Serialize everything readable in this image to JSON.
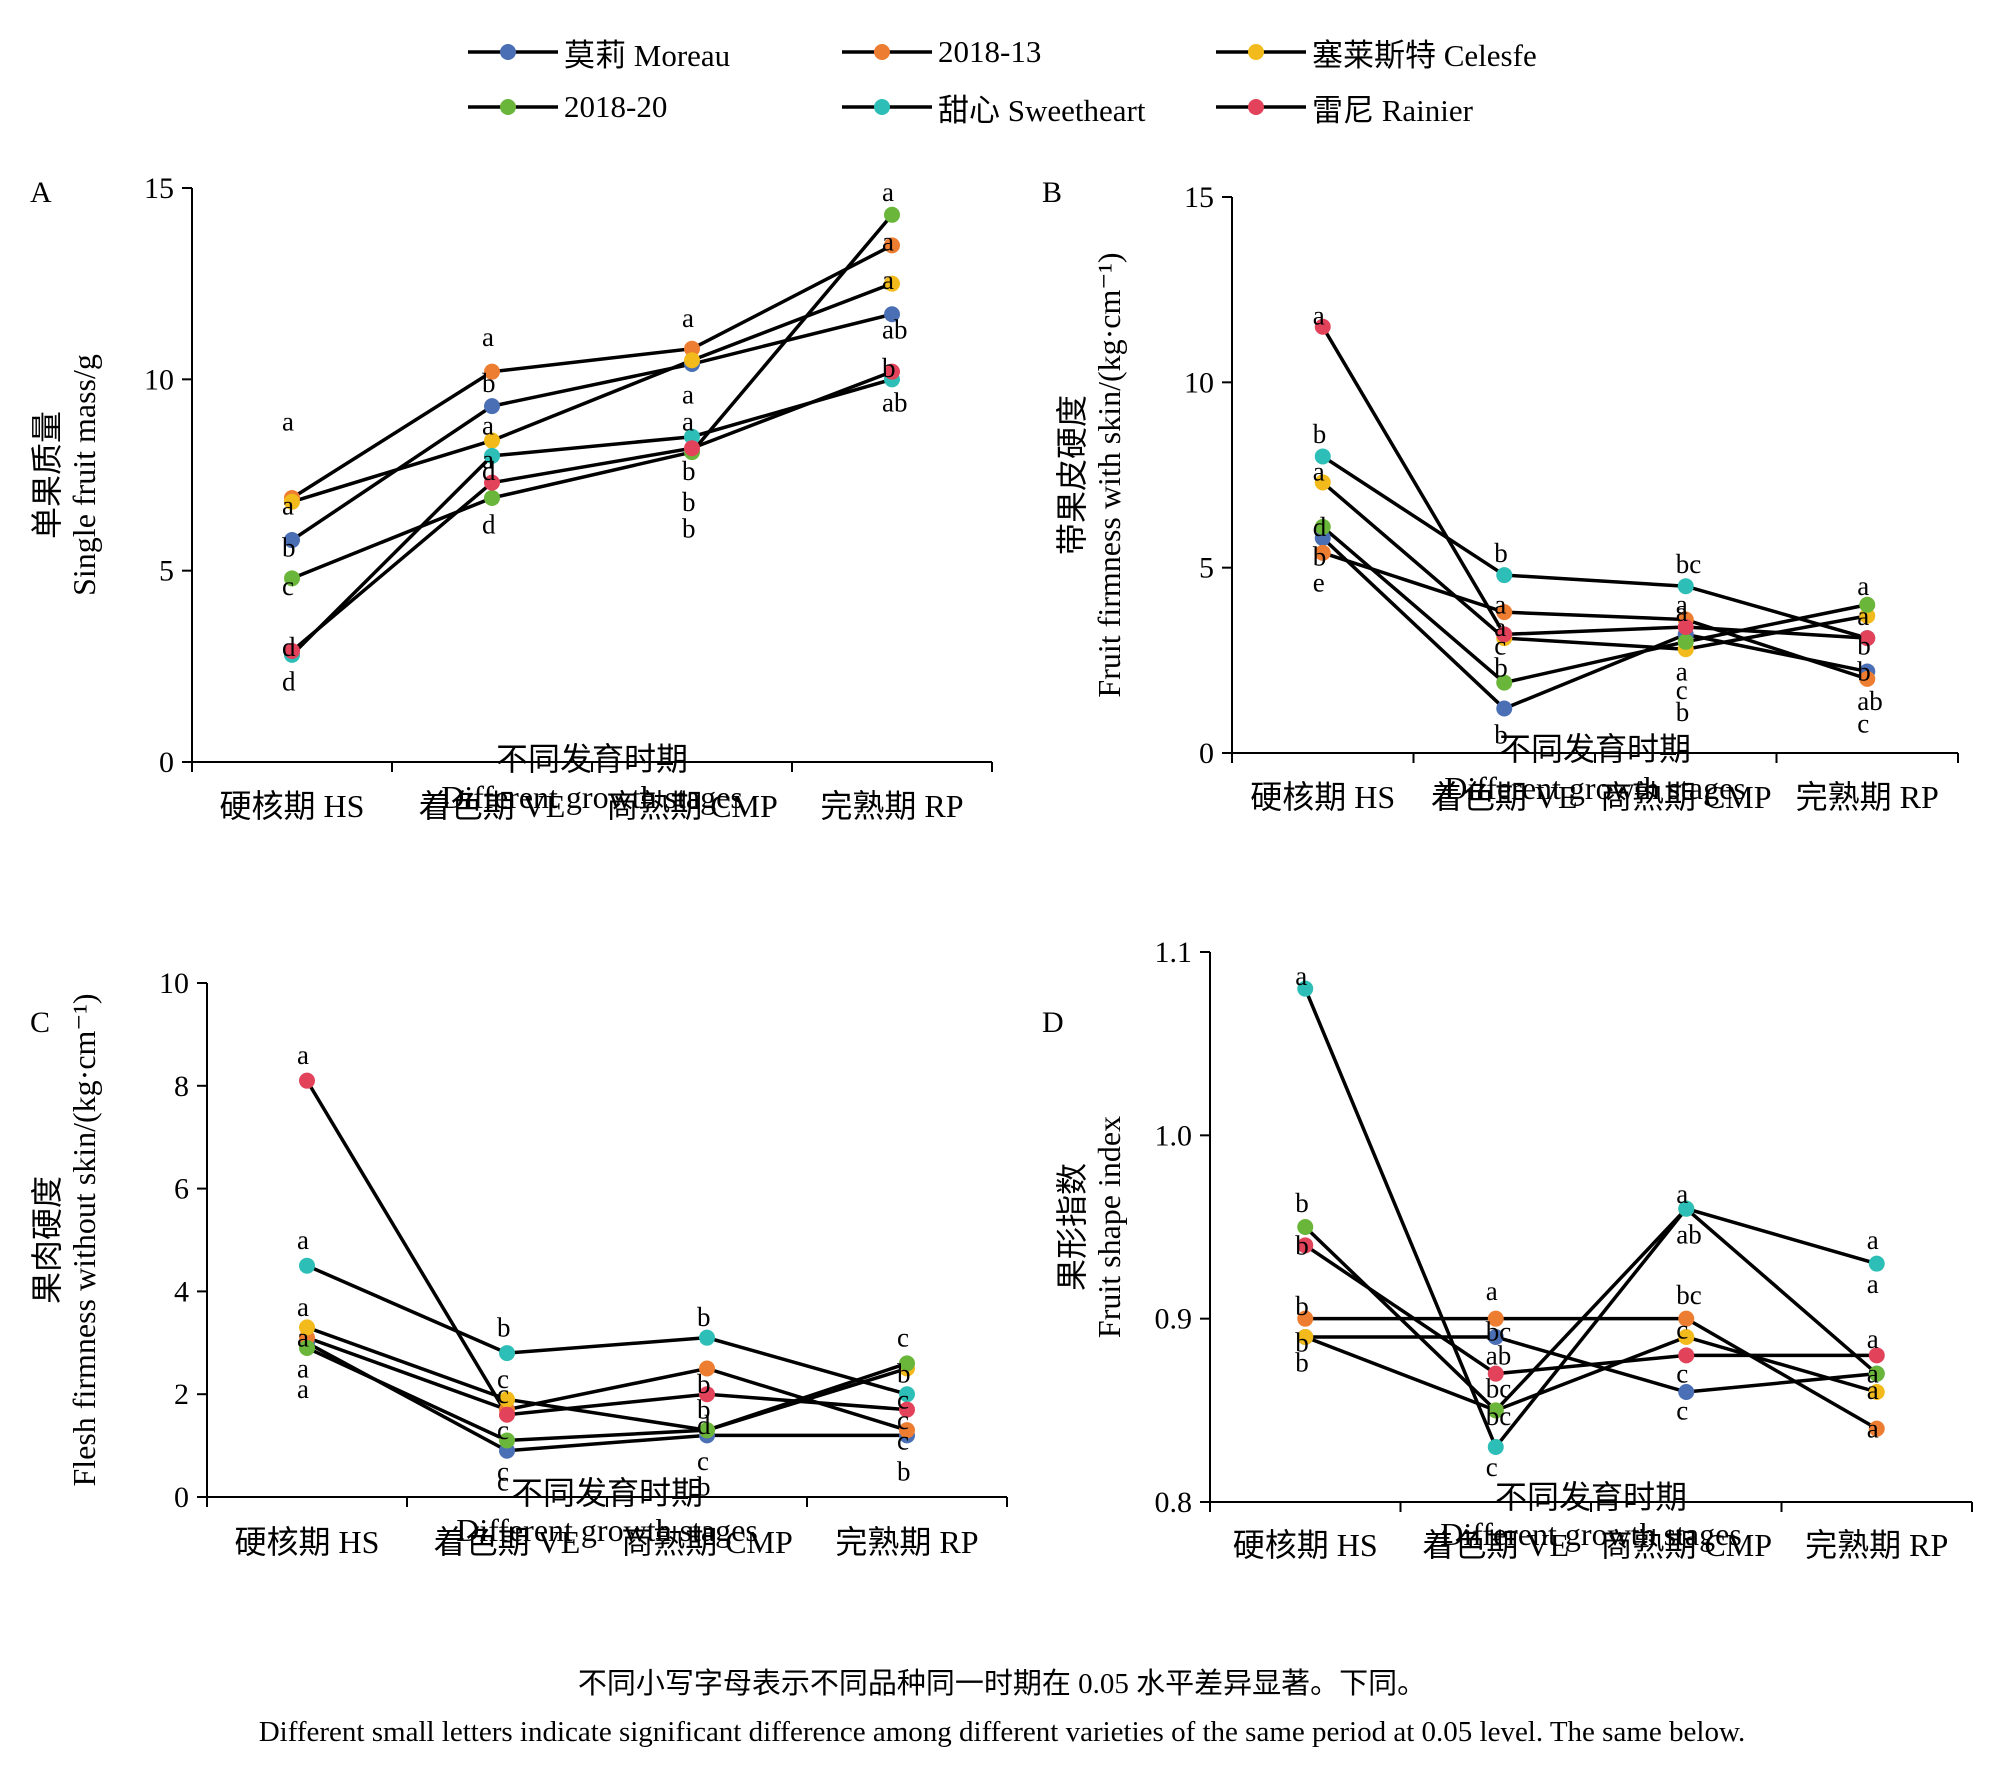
{
  "legend": [
    {
      "name": "莫莉 Moreau",
      "color": "#4a6fb5"
    },
    {
      "name": "2018-13",
      "color": "#ed7d31"
    },
    {
      "name": "塞莱斯特 Celesfe",
      "color": "#f2bb1b"
    },
    {
      "name": "2018-20",
      "color": "#6ab63a"
    },
    {
      "name": "甜心 Sweetheart",
      "color": "#2dbfb7"
    },
    {
      "name": "雷尼 Rainier",
      "color": "#e2425a"
    }
  ],
  "chart_data": [
    {
      "type": "line",
      "panel_label": "A",
      "categories": [
        "硬核期 HS",
        "着色期 VE",
        "商熟期 CMP",
        "完熟期 RP"
      ],
      "xlabel_cn": "不同发育时期",
      "xlabel_en": "Different growth stages",
      "ylabel_cn": "单果质量",
      "ylabel_en": "Single fruit mass/g",
      "ylim": [
        0,
        15
      ],
      "yticks": [
        "0",
        "5",
        "10",
        "15"
      ],
      "series": [
        {
          "name": "莫莉 Moreau",
          "values": [
            5.8,
            9.3,
            10.4,
            11.7
          ]
        },
        {
          "name": "2018-13",
          "values": [
            6.9,
            10.2,
            10.8,
            13.5
          ]
        },
        {
          "name": "塞莱斯特 Celesfe",
          "values": [
            6.8,
            8.4,
            10.5,
            12.5
          ]
        },
        {
          "name": "2018-20",
          "values": [
            4.8,
            6.9,
            8.1,
            14.3
          ]
        },
        {
          "name": "甜心 Sweetheart",
          "values": [
            2.8,
            8.0,
            8.5,
            10.0
          ]
        },
        {
          "name": "雷尼 Rainier",
          "values": [
            2.9,
            7.3,
            8.2,
            10.2
          ]
        }
      ],
      "letters": [
        {
          "text": "a",
          "cat": 0,
          "v": 8.9
        },
        {
          "text": "a",
          "cat": 0,
          "v": 6.7
        },
        {
          "text": "b",
          "cat": 0,
          "v": 5.6
        },
        {
          "text": "c",
          "cat": 0,
          "v": 4.6
        },
        {
          "text": "d",
          "cat": 0,
          "v": 3.0
        },
        {
          "text": "d",
          "cat": 0,
          "v": 2.1
        },
        {
          "text": "a",
          "cat": 1,
          "v": 11.1
        },
        {
          "text": "b",
          "cat": 1,
          "v": 9.9
        },
        {
          "text": "a",
          "cat": 1,
          "v": 8.8
        },
        {
          "text": "a",
          "cat": 1,
          "v": 7.9
        },
        {
          "text": "d",
          "cat": 1,
          "v": 7.6
        },
        {
          "text": "d",
          "cat": 1,
          "v": 6.2
        },
        {
          "text": "a",
          "cat": 2,
          "v": 11.6
        },
        {
          "text": "a",
          "cat": 2,
          "v": 9.6
        },
        {
          "text": "a",
          "cat": 2,
          "v": 8.9
        },
        {
          "text": "b",
          "cat": 2,
          "v": 7.6
        },
        {
          "text": "b",
          "cat": 2,
          "v": 6.8
        },
        {
          "text": "b",
          "cat": 2,
          "v": 6.1
        },
        {
          "text": "a",
          "cat": 3,
          "v": 14.9
        },
        {
          "text": "a",
          "cat": 3,
          "v": 13.6
        },
        {
          "text": "a",
          "cat": 3,
          "v": 12.6
        },
        {
          "text": "ab",
          "cat": 3,
          "v": 11.3
        },
        {
          "text": "b",
          "cat": 3,
          "v": 10.3
        },
        {
          "text": "ab",
          "cat": 3,
          "v": 9.4
        }
      ]
    },
    {
      "type": "line",
      "panel_label": "B",
      "categories": [
        "硬核期 HS",
        "着色期 VE",
        "商熟期 CMP",
        "完熟期 RP"
      ],
      "xlabel_cn": "不同发育时期",
      "xlabel_en": "Different growth stages",
      "ylabel_cn": "带果皮硬度",
      "ylabel_en": "Fruit firmness with skin/(kg·cm⁻¹)",
      "ylim": [
        0,
        15
      ],
      "yticks": [
        "0",
        "5",
        "10",
        "15"
      ],
      "series": [
        {
          "name": "莫莉 Moreau",
          "values": [
            5.8,
            1.2,
            3.2,
            2.2
          ]
        },
        {
          "name": "2018-13",
          "values": [
            5.4,
            3.8,
            3.6,
            2.0
          ]
        },
        {
          "name": "塞莱斯特 Celesfe",
          "values": [
            7.3,
            3.1,
            2.8,
            3.7
          ]
        },
        {
          "name": "2018-20",
          "values": [
            6.1,
            1.9,
            3.0,
            4.0
          ]
        },
        {
          "name": "甜心 Sweetheart",
          "values": [
            8.0,
            4.8,
            4.5,
            3.1
          ]
        },
        {
          "name": "雷尼 Rainier",
          "values": [
            11.5,
            3.2,
            3.4,
            3.1
          ]
        }
      ],
      "letters": [
        {
          "text": "a",
          "cat": 0,
          "v": 11.8
        },
        {
          "text": "b",
          "cat": 0,
          "v": 8.6
        },
        {
          "text": "a",
          "cat": 0,
          "v": 7.6
        },
        {
          "text": "d",
          "cat": 0,
          "v": 6.1
        },
        {
          "text": "b",
          "cat": 0,
          "v": 5.3
        },
        {
          "text": "e",
          "cat": 0,
          "v": 4.6
        },
        {
          "text": "b",
          "cat": 1,
          "v": 5.4
        },
        {
          "text": "a",
          "cat": 1,
          "v": 4.0
        },
        {
          "text": "a",
          "cat": 1,
          "v": 3.4
        },
        {
          "text": "c",
          "cat": 1,
          "v": 2.9
        },
        {
          "text": "b",
          "cat": 1,
          "v": 2.3
        },
        {
          "text": "b",
          "cat": 1,
          "v": 0.5
        },
        {
          "text": "bc",
          "cat": 2,
          "v": 5.1
        },
        {
          "text": "a",
          "cat": 2,
          "v": 4.0
        },
        {
          "text": "a",
          "cat": 2,
          "v": 3.8
        },
        {
          "text": "a",
          "cat": 2,
          "v": 2.2
        },
        {
          "text": "c",
          "cat": 2,
          "v": 1.7
        },
        {
          "text": "b",
          "cat": 2,
          "v": 1.1
        },
        {
          "text": "a",
          "cat": 3,
          "v": 4.5
        },
        {
          "text": "a",
          "cat": 3,
          "v": 3.7
        },
        {
          "text": "b",
          "cat": 3,
          "v": 2.9
        },
        {
          "text": "b",
          "cat": 3,
          "v": 2.2
        },
        {
          "text": "ab",
          "cat": 3,
          "v": 1.4
        },
        {
          "text": "c",
          "cat": 3,
          "v": 0.8
        }
      ]
    },
    {
      "type": "line",
      "panel_label": "C",
      "categories": [
        "硬核期 HS",
        "着色期 VE",
        "商熟期 CMP",
        "完熟期 RP"
      ],
      "xlabel_cn": "不同发育时期",
      "xlabel_en": "Different growth stages",
      "ylabel_cn": "果肉硬度",
      "ylabel_en": "Flesh firmness without skin/(kg·cm⁻¹)",
      "ylim": [
        0,
        10
      ],
      "yticks": [
        "0",
        "2",
        "4",
        "6",
        "8",
        "10"
      ],
      "series": [
        {
          "name": "莫莉 Moreau",
          "values": [
            3.0,
            0.9,
            1.2,
            1.2
          ]
        },
        {
          "name": "2018-13",
          "values": [
            3.1,
            1.7,
            2.5,
            1.3
          ]
        },
        {
          "name": "塞莱斯特 Celesfe",
          "values": [
            3.3,
            1.9,
            1.3,
            2.5
          ]
        },
        {
          "name": "2018-20",
          "values": [
            2.9,
            1.1,
            1.3,
            2.6
          ]
        },
        {
          "name": "甜心 Sweetheart",
          "values": [
            4.5,
            2.8,
            3.1,
            2.0
          ]
        },
        {
          "name": "雷尼 Rainier",
          "values": [
            8.1,
            1.6,
            2.0,
            1.7
          ]
        }
      ],
      "letters": [
        {
          "text": "a",
          "cat": 0,
          "v": 8.6
        },
        {
          "text": "a",
          "cat": 0,
          "v": 5.0
        },
        {
          "text": "a",
          "cat": 0,
          "v": 3.7
        },
        {
          "text": "a",
          "cat": 0,
          "v": 3.1
        },
        {
          "text": "a",
          "cat": 0,
          "v": 2.5
        },
        {
          "text": "a",
          "cat": 0,
          "v": 2.1
        },
        {
          "text": "b",
          "cat": 1,
          "v": 3.3
        },
        {
          "text": "c",
          "cat": 1,
          "v": 2.3
        },
        {
          "text": "c",
          "cat": 1,
          "v": 2.0
        },
        {
          "text": "c",
          "cat": 1,
          "v": 1.3
        },
        {
          "text": "c",
          "cat": 1,
          "v": 0.5
        },
        {
          "text": "c",
          "cat": 1,
          "v": 0.3
        },
        {
          "text": "b",
          "cat": 2,
          "v": 3.5
        },
        {
          "text": "b",
          "cat": 2,
          "v": 2.2
        },
        {
          "text": "b",
          "cat": 2,
          "v": 1.7
        },
        {
          "text": "d",
          "cat": 2,
          "v": 1.4
        },
        {
          "text": "c",
          "cat": 2,
          "v": 0.7
        },
        {
          "text": "b",
          "cat": 2,
          "v": 0.2
        },
        {
          "text": "c",
          "cat": 3,
          "v": 3.1
        },
        {
          "text": "b",
          "cat": 3,
          "v": 2.4
        },
        {
          "text": "c",
          "cat": 3,
          "v": 1.9
        },
        {
          "text": "c",
          "cat": 3,
          "v": 1.5
        },
        {
          "text": "c",
          "cat": 3,
          "v": 1.1
        },
        {
          "text": "b",
          "cat": 3,
          "v": 0.5
        }
      ]
    },
    {
      "type": "line",
      "panel_label": "D",
      "categories": [
        "硬核期 HS",
        "着色期 VE",
        "商熟期 CMP",
        "完熟期 RP"
      ],
      "xlabel_cn": "不同发育时期",
      "xlabel_en": "Different growth stages",
      "ylabel_cn": "果形指数",
      "ylabel_en": "Fruit shape index",
      "ylim": [
        0.8,
        1.1
      ],
      "yticks": [
        "0.8",
        "0.9",
        "1.0",
        "1.1"
      ],
      "series": [
        {
          "name": "莫莉 Moreau",
          "values": [
            0.89,
            0.89,
            0.86,
            0.87
          ]
        },
        {
          "name": "2018-13",
          "values": [
            0.9,
            0.9,
            0.9,
            0.84
          ]
        },
        {
          "name": "塞莱斯特 Celesfe",
          "values": [
            0.89,
            0.85,
            0.89,
            0.86
          ]
        },
        {
          "name": "2018-20",
          "values": [
            0.95,
            0.85,
            0.96,
            0.87
          ]
        },
        {
          "name": "甜心 Sweetheart",
          "values": [
            1.08,
            0.83,
            0.96,
            0.93
          ]
        },
        {
          "name": "雷尼 Rainier",
          "values": [
            0.94,
            0.87,
            0.88,
            0.88
          ]
        }
      ],
      "letters": [
        {
          "text": "a",
          "cat": 0,
          "v": 1.087
        },
        {
          "text": "b",
          "cat": 0,
          "v": 0.963
        },
        {
          "text": "b",
          "cat": 0,
          "v": 0.94
        },
        {
          "text": "b",
          "cat": 0,
          "v": 0.907
        },
        {
          "text": "b",
          "cat": 0,
          "v": 0.887
        },
        {
          "text": "b",
          "cat": 0,
          "v": 0.876
        },
        {
          "text": "a",
          "cat": 1,
          "v": 0.915
        },
        {
          "text": "bc",
          "cat": 1,
          "v": 0.893
        },
        {
          "text": "ab",
          "cat": 1,
          "v": 0.88
        },
        {
          "text": "bc",
          "cat": 1,
          "v": 0.862
        },
        {
          "text": "bc",
          "cat": 1,
          "v": 0.847
        },
        {
          "text": "c",
          "cat": 1,
          "v": 0.819
        },
        {
          "text": "a",
          "cat": 2,
          "v": 0.968
        },
        {
          "text": "ab",
          "cat": 2,
          "v": 0.946
        },
        {
          "text": "bc",
          "cat": 2,
          "v": 0.913
        },
        {
          "text": "c",
          "cat": 2,
          "v": 0.894
        },
        {
          "text": "c",
          "cat": 2,
          "v": 0.87
        },
        {
          "text": "c",
          "cat": 2,
          "v": 0.85
        },
        {
          "text": "a",
          "cat": 3,
          "v": 0.943
        },
        {
          "text": "a",
          "cat": 3,
          "v": 0.919
        },
        {
          "text": "a",
          "cat": 3,
          "v": 0.889
        },
        {
          "text": "a",
          "cat": 3,
          "v": 0.87
        },
        {
          "text": "a",
          "cat": 3,
          "v": 0.861
        },
        {
          "text": "a",
          "cat": 3,
          "v": 0.84
        }
      ]
    }
  ],
  "caption": {
    "cn": "不同小写字母表示不同品种同一时期在 0.05 水平差异显著。下同。",
    "en": "Different small letters indicate significant difference among different varieties of  the same period at 0.05 level. The same below."
  }
}
